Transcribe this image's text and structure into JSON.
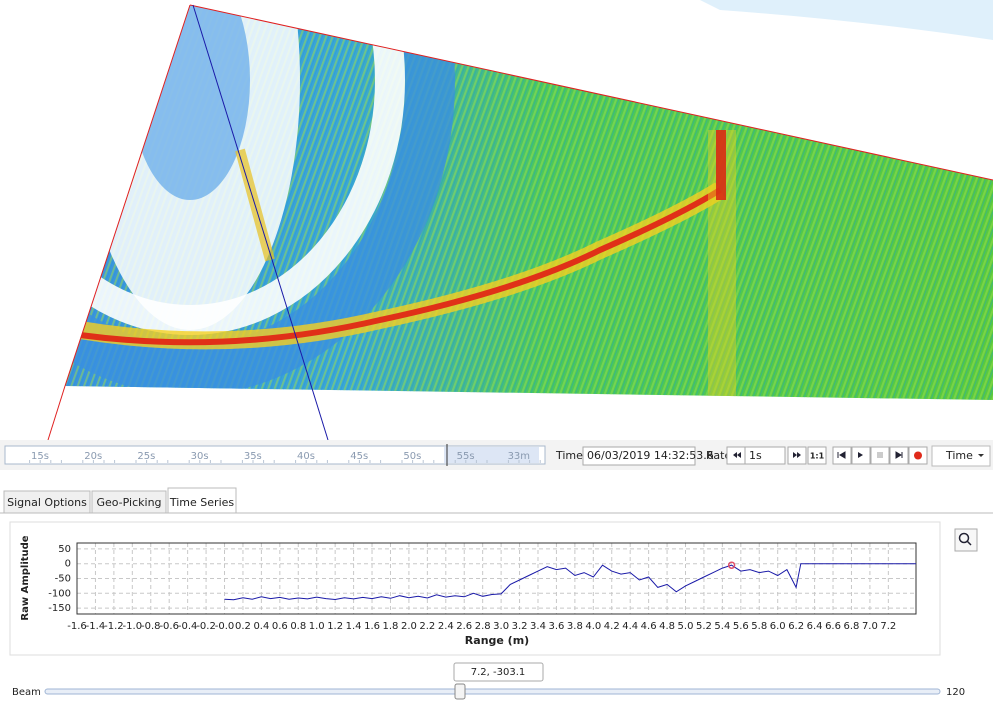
{
  "timeline": {
    "labels": [
      "15s",
      "20s",
      "25s",
      "30s",
      "35s",
      "40s",
      "45s",
      "50s",
      "55s",
      "33m"
    ]
  },
  "toolbar": {
    "time_label": "Time:",
    "time_value": "06/03/2019 14:32:53.6",
    "rate_label": "Rate:",
    "rate_value": "1s",
    "ratio_button": "1:1",
    "mode_dropdown": "Time"
  },
  "tabs": [
    "Signal Options",
    "Geo-Picking",
    "Time Series"
  ],
  "chart_data": {
    "type": "line",
    "y_label": "Raw Amplitude",
    "x_label": "Range (m)",
    "xlim": [
      -1.6,
      7.5
    ],
    "ylim": [
      -170,
      70
    ],
    "grid": true,
    "yticks": [
      50,
      0,
      -50,
      -100,
      -150
    ],
    "xticks": [
      -1.6,
      -1.4,
      -1.2,
      {
        "value": -1,
        "label": "-1.0"
      },
      -0.8,
      -0.6,
      -0.4,
      -0.2,
      {
        "value": 0,
        "label": "-0.0"
      },
      0.2,
      0.4,
      0.6,
      0.8,
      {
        "value": 1,
        "label": "1.0"
      },
      1.2,
      1.4,
      1.6,
      1.8,
      {
        "value": 2,
        "label": "2.0"
      },
      2.2,
      2.4,
      2.6,
      2.8,
      {
        "value": 3,
        "label": "3.0"
      },
      3.2,
      3.4,
      3.6,
      3.8,
      {
        "value": 4,
        "label": "4.0"
      },
      4.2,
      4.4,
      4.6,
      4.8,
      {
        "value": 5,
        "label": "5.0"
      },
      5.2,
      5.4,
      5.6,
      5.8,
      {
        "value": 6,
        "label": "6.0"
      },
      6.2,
      6.4,
      6.6,
      6.8,
      {
        "value": 7,
        "label": "7.0"
      },
      7.2
    ],
    "x": [
      0,
      0.1,
      0.2,
      0.3,
      0.4,
      0.5,
      0.6,
      0.7,
      0.8,
      0.9,
      1,
      1.1,
      1.2,
      1.3,
      1.4,
      1.5,
      1.6,
      1.7,
      1.8,
      1.9,
      2,
      2.1,
      2.2,
      2.3,
      2.4,
      2.5,
      2.6,
      2.7,
      2.8,
      2.9,
      3,
      3.1,
      3.2,
      3.3,
      3.4,
      3.5,
      3.6,
      3.7,
      3.8,
      3.9,
      4,
      4.1,
      4.2,
      4.3,
      4.4,
      4.5,
      4.6,
      4.7,
      4.8,
      4.9,
      5,
      5.1,
      5.2,
      5.3,
      5.4,
      5.5,
      5.6,
      5.7,
      5.8,
      5.9,
      6,
      6.1,
      6.2,
      6.25,
      7.5
    ],
    "series": [
      {
        "color": "#1a1aa8",
        "values": [
          -120,
          -122,
          -115,
          -120,
          -112,
          -118,
          -114,
          -120,
          -116,
          -119,
          -113,
          -118,
          -121,
          -115,
          -119,
          -114,
          -118,
          -112,
          -117,
          -108,
          -115,
          -110,
          -116,
          -105,
          -113,
          -108,
          -112,
          -100,
          -110,
          -104,
          -102,
          -70,
          -55,
          -40,
          -25,
          -10,
          -20,
          -15,
          -40,
          -30,
          -45,
          -5,
          -25,
          -35,
          -30,
          -55,
          -45,
          -80,
          -70,
          -95,
          -75,
          -60,
          -45,
          -30,
          -15,
          -5,
          -25,
          -20,
          -30,
          -25,
          -40,
          -20,
          -80,
          0,
          0
        ]
      }
    ],
    "highlight_point": {
      "x": 5.5,
      "y": -5,
      "color": "#e0506a"
    }
  },
  "tooltip": "7.2, -303.1",
  "slider": {
    "label": "Beam",
    "max_label": "120"
  }
}
